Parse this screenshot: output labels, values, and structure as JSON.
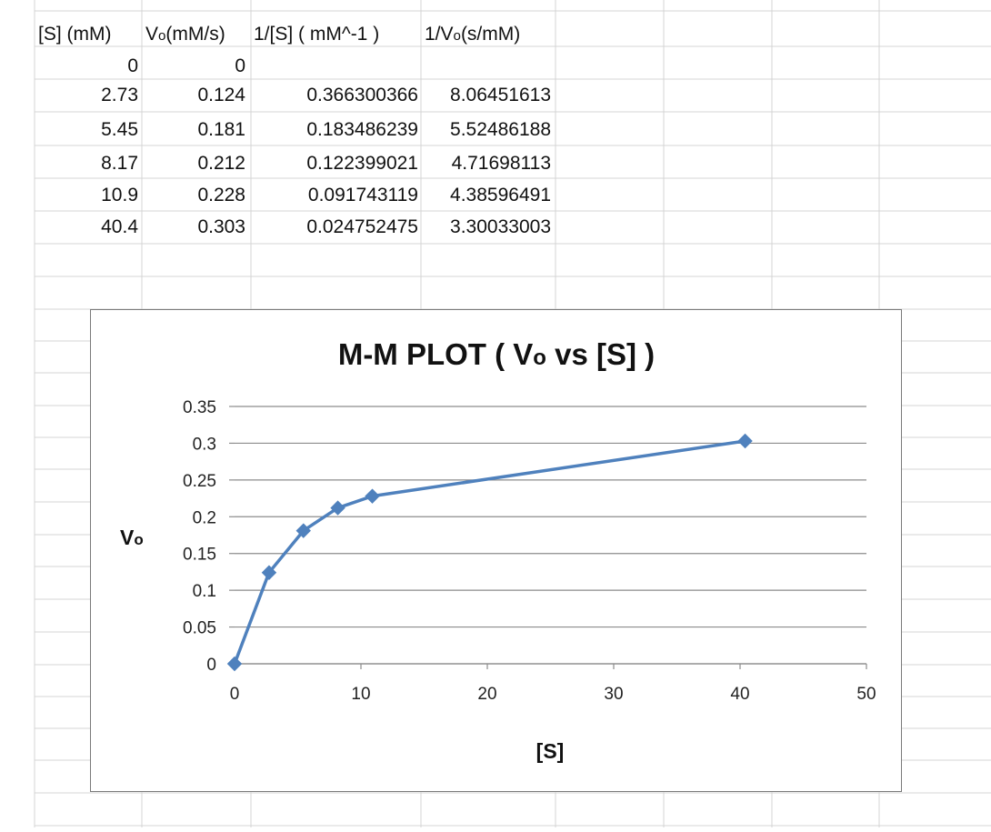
{
  "sheet": {
    "headers": {
      "col_a": "[S] (mM)",
      "col_b_main": "V",
      "col_b_sub": "o",
      "col_b_tail": "(mM/s)",
      "col_c": "1/[S] ( mM^-1 )",
      "col_d_main": "1/V",
      "col_d_sub": "o",
      "col_d_tail": "(s/mM)"
    },
    "rows": [
      [
        "0",
        "0",
        "",
        ""
      ],
      [
        "2.73",
        "0.124",
        "0.366300366",
        "8.06451613"
      ],
      [
        "5.45",
        "0.181",
        "0.183486239",
        "5.52486188"
      ],
      [
        "8.17",
        "0.212",
        "0.122399021",
        "4.71698113"
      ],
      [
        "10.9",
        "0.228",
        "0.091743119",
        "4.38596491"
      ],
      [
        "40.4",
        "0.303",
        "0.024752475",
        "3.30033003"
      ]
    ],
    "gridline_color": "#d4d4d4"
  },
  "chart_data": {
    "type": "line",
    "title_main": "M-M PLOT ( V",
    "title_sub": "o",
    "title_tail": " vs [S] )",
    "xlabel": "[S]",
    "ylabel_main": "V",
    "ylabel_sub": "o",
    "xlim": [
      0,
      50
    ],
    "ylim": [
      0,
      0.35
    ],
    "x_ticks": [
      "0",
      "10",
      "20",
      "30",
      "40",
      "50"
    ],
    "y_ticks": [
      "0",
      "0.05",
      "0.1",
      "0.15",
      "0.2",
      "0.25",
      "0.3",
      "0.35"
    ],
    "grid": "horizontal",
    "marker": "diamond",
    "series": [
      {
        "x": [
          0,
          2.73,
          5.45,
          8.17,
          10.9,
          40.4
        ],
        "y": [
          0,
          0.124,
          0.181,
          0.212,
          0.228,
          0.303
        ]
      }
    ],
    "colors": {
      "series": "#4f81bd",
      "grid": "#8c8c8c",
      "border": "#7a7a7a"
    }
  }
}
